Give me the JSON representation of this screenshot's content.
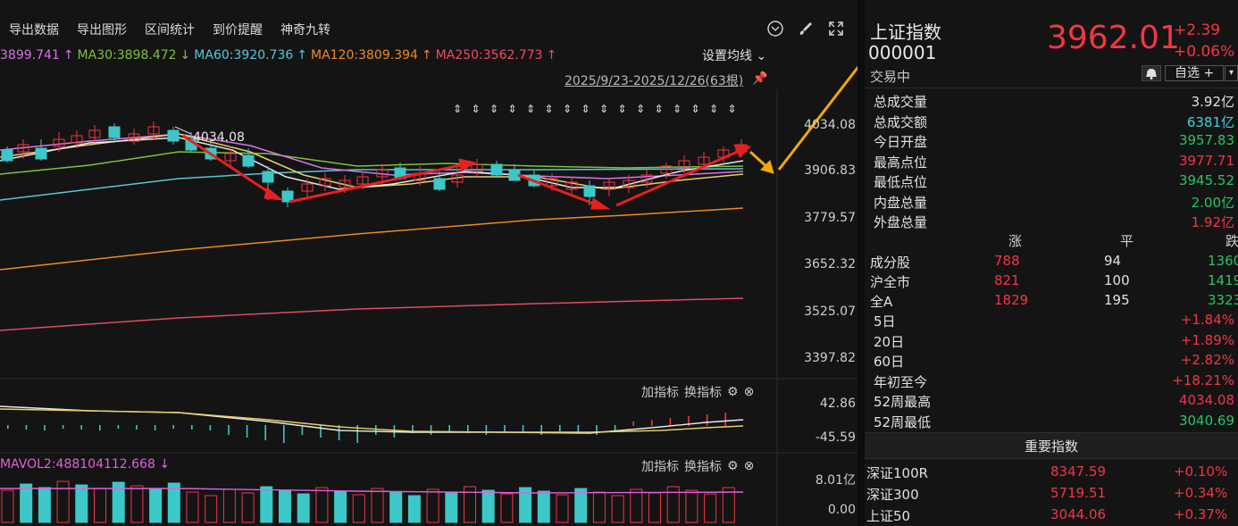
{
  "toolbar": {
    "items": [
      "导出数据",
      "导出图形",
      "区间统计",
      "到价提醒",
      "神奇九转"
    ],
    "icons": [
      "chevron-circle-icon",
      "brush-icon",
      "expand-icon"
    ]
  },
  "ma": [
    {
      "label": "3899.741",
      "color": "#d873e8"
    },
    {
      "label": "↑",
      "color": "#d873e8"
    },
    {
      "label": "MA30:3898.472",
      "color": "#7cc23a"
    },
    {
      "label": "↓",
      "color": "#7cc23a"
    },
    {
      "label": "MA60:3920.736",
      "color": "#56c8d8"
    },
    {
      "label": "↑",
      "color": "#56c8d8"
    },
    {
      "label": "MA120:3809.394",
      "color": "#f08a1e"
    },
    {
      "label": "↑",
      "color": "#f08a1e"
    },
    {
      "label": "MA250:3562.773",
      "color": "#f04a64"
    },
    {
      "label": "↑",
      "color": "#f04a64"
    }
  ],
  "set_ma": "设置均线 ⌄",
  "range": "2025/9/23-2025/12/26(63根)",
  "high_annotation": "4034.08",
  "price_axis": [
    "4034.08",
    "3906.83",
    "3779.57",
    "3652.32",
    "3525.07",
    "3397.82"
  ],
  "macd_axis": [
    "42.86",
    "-45.59"
  ],
  "vol_axis": [
    "8.01亿",
    "0.00"
  ],
  "sub": {
    "add": "加指标",
    "swap": "换指标"
  },
  "vol_label": "MAVOL2:488104112.668",
  "vol_arrow": "↓",
  "quote": {
    "name": "上证指数",
    "code": "000001",
    "status": "交易中",
    "price": "3962.01",
    "change": "+2.39",
    "change_pct": "+0.06%",
    "zixuan": "自选 +",
    "zixuan_arrow": "▾"
  },
  "stats": [
    {
      "k": "总成交量",
      "v": "3.92亿",
      "c": "white"
    },
    {
      "k": "总成交额",
      "v": "6381亿",
      "c": "cyan"
    },
    {
      "k": "今日开盘",
      "v": "3957.83",
      "c": "green"
    },
    {
      "k": "最高点位",
      "v": "3977.71",
      "c": "red"
    },
    {
      "k": "最低点位",
      "v": "3945.52",
      "c": "green"
    },
    {
      "k": "内盘总量",
      "v": "2.00亿",
      "c": "green"
    },
    {
      "k": "外盘总量",
      "v": "1.92亿",
      "c": "red"
    }
  ],
  "breadth_head": [
    "涨",
    "平",
    "跌"
  ],
  "breadth": [
    {
      "k": "成分股",
      "up": "788",
      "flat": "94",
      "down": "1360"
    },
    {
      "k": "沪全市",
      "up": "821",
      "flat": "100",
      "down": "1419"
    },
    {
      "k": "全A",
      "up": "1829",
      "flat": "195",
      "down": "3323"
    }
  ],
  "periods": [
    {
      "k": "5日",
      "v": "+1.84%"
    },
    {
      "k": "20日",
      "v": "+1.89%"
    },
    {
      "k": "60日",
      "v": "+2.82%"
    },
    {
      "k": "年初至今",
      "v": "+18.21%"
    }
  ],
  "week52": [
    {
      "k": "52周最高",
      "v": "4034.08",
      "c": "red"
    },
    {
      "k": "52周最低",
      "v": "3040.69",
      "c": "green"
    }
  ],
  "imp_title": "重要指数",
  "imp": [
    {
      "k": "深证100R",
      "v": "8347.59",
      "p": "+0.10%"
    },
    {
      "k": "深证300",
      "v": "5719.51",
      "p": "+0.34%"
    },
    {
      "k": "上证50",
      "v": "3044.06",
      "p": "+0.37%"
    }
  ]
}
